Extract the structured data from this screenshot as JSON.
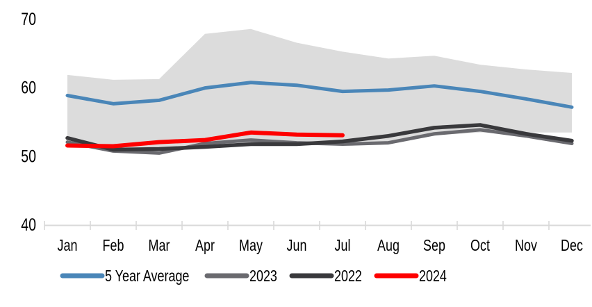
{
  "chart_data": {
    "type": "line",
    "title": "",
    "xlabel": "",
    "ylabel": "",
    "categories": [
      "Jan",
      "Feb",
      "Mar",
      "Apr",
      "May",
      "Jun",
      "Jul",
      "Aug",
      "Sep",
      "Oct",
      "Nov",
      "Dec"
    ],
    "series": [
      {
        "name": "5 Year Average",
        "color": "#4a86b8",
        "values": [
          58.8,
          57.6,
          58.1,
          59.9,
          60.7,
          60.3,
          59.4,
          59.6,
          60.2,
          59.4,
          58.3,
          57.1
        ]
      },
      {
        "name": "2023",
        "color": "#6a6a6f",
        "values": [
          52.0,
          50.7,
          50.4,
          51.8,
          52.3,
          51.9,
          51.7,
          51.9,
          53.2,
          53.8,
          52.9,
          51.8
        ]
      },
      {
        "name": "2022",
        "color": "#39393c",
        "values": [
          52.6,
          50.9,
          51.0,
          51.3,
          51.7,
          51.7,
          52.1,
          52.9,
          54.1,
          54.5,
          53.2,
          52.2
        ]
      },
      {
        "name": "2024",
        "color": "#fe0000",
        "values": [
          51.5,
          51.4,
          52.0,
          52.3,
          53.4,
          53.1,
          53.0
        ]
      }
    ],
    "range_band": {
      "color": "#dcdcdc",
      "max": [
        61.8,
        61.1,
        61.2,
        67.8,
        68.5,
        66.5,
        65.2,
        64.2,
        64.6,
        63.3,
        62.6,
        62.1
      ],
      "min": [
        52.3,
        50.7,
        50.4,
        51.3,
        51.6,
        51.5,
        51.6,
        51.8,
        53.0,
        53.4,
        53.4,
        53.4
      ]
    },
    "ylim": [
      40,
      70
    ],
    "yticks": [
      40,
      50,
      60,
      70
    ],
    "grid": false,
    "legend_position": "bottom",
    "axis_color": "#d9d9d9",
    "text_color": "#000000"
  }
}
